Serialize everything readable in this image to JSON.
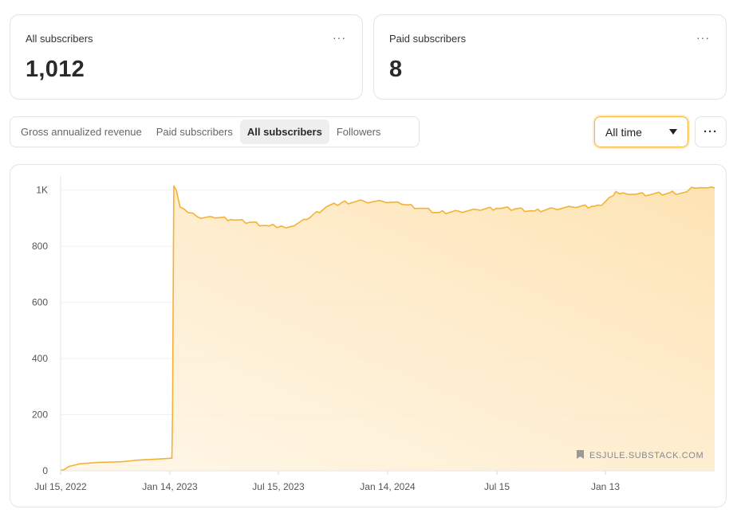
{
  "stats": {
    "all": {
      "title": "All subscribers",
      "value": "1,012",
      "more": "···"
    },
    "paid": {
      "title": "Paid subscribers",
      "value": "8",
      "more": "···"
    }
  },
  "tabs": [
    {
      "label": "Gross annualized revenue",
      "active": false
    },
    {
      "label": "Paid subscribers",
      "active": false
    },
    {
      "label": "All subscribers",
      "active": true
    },
    {
      "label": "Followers",
      "active": false
    }
  ],
  "range": {
    "selected": "All time"
  },
  "more_button": "···",
  "colors": {
    "line": "#f5b133",
    "fill": "#fde7bd",
    "accent": "#f5b33c"
  },
  "chart_data": {
    "type": "area",
    "title": "",
    "xlabel": "",
    "ylabel": "",
    "ylim": [
      0,
      1050
    ],
    "grid": true,
    "x_ticks": [
      "Jul 15, 2022",
      "Jan 14, 2023",
      "Jul 15, 2023",
      "Jan 14, 2024",
      "Jul 15",
      "Jan 13"
    ],
    "y_ticks": [
      {
        "value": 0,
        "label": "0"
      },
      {
        "value": 200,
        "label": "200"
      },
      {
        "value": 400,
        "label": "400"
      },
      {
        "value": 600,
        "label": "600"
      },
      {
        "value": 800,
        "label": "800"
      },
      {
        "value": 1000,
        "label": "1K"
      }
    ],
    "series": [
      {
        "x": [
          "2022-07-15",
          "2022-07-20",
          "2022-07-28",
          "2022-08-15",
          "2022-09-15",
          "2022-10-20",
          "2022-11-15",
          "2022-12-20",
          "2023-01-10",
          "2023-01-11",
          "2023-01-13",
          "2023-01-17",
          "2023-01-23",
          "2023-02-05",
          "2023-02-20",
          "2023-03-15",
          "2023-04-15",
          "2023-05-15",
          "2023-06-15",
          "2023-07-05",
          "2023-07-20",
          "2023-08-15",
          "2023-09-15",
          "2023-10-10",
          "2023-11-15",
          "2023-12-15",
          "2024-01-14",
          "2024-02-15",
          "2024-03-15",
          "2024-04-15",
          "2024-05-15",
          "2024-06-15",
          "2024-07-15",
          "2024-08-15",
          "2024-09-15",
          "2024-10-15",
          "2024-11-15",
          "2024-12-01",
          "2024-12-20",
          "2024-12-24",
          "2025-01-05",
          "2025-01-20",
          "2025-02-20",
          "2025-03-20",
          "2025-04-10",
          "2025-04-25",
          "2025-05-15",
          "2025-06-01"
        ],
        "values": [
          3,
          3,
          15,
          25,
          30,
          32,
          38,
          42,
          45,
          200,
          1015,
          1000,
          940,
          920,
          905,
          905,
          895,
          885,
          872,
          872,
          870,
          895,
          940,
          955,
          960,
          960,
          950,
          935,
          920,
          925,
          930,
          935,
          933,
          925,
          935,
          940,
          942,
          945,
          980,
          995,
          990,
          985,
          985,
          990,
          990,
          1010,
          1008,
          1008
        ]
      }
    ],
    "watermark": "ESJULE.SUBSTACK.COM"
  }
}
